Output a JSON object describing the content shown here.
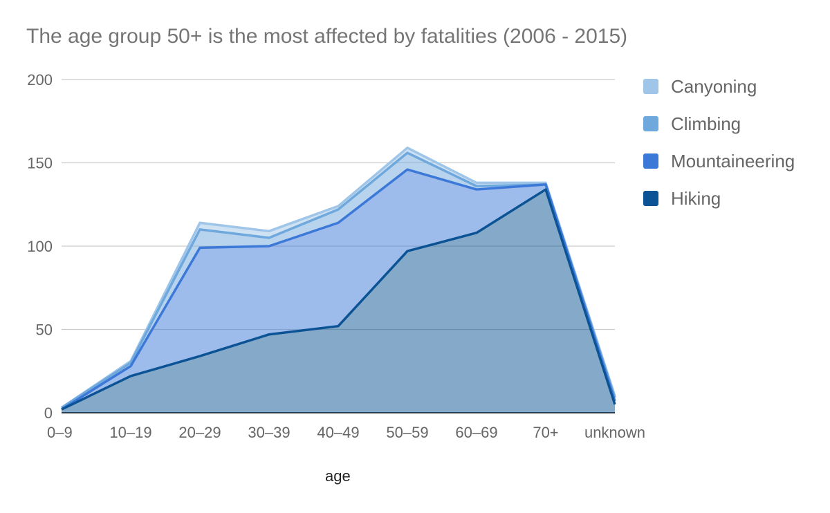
{
  "chart_data": {
    "type": "area",
    "stacked": true,
    "title": "The age group 50+ is the most affected by fatalities (2006 - 2015)",
    "xlabel": "age",
    "ylabel": "",
    "categories": [
      "0–9",
      "10–19",
      "20–29",
      "30–39",
      "40–49",
      "50–59",
      "60–69",
      "70+",
      "unknown"
    ],
    "ylim": [
      0,
      200
    ],
    "yticks": [
      "0",
      "50",
      "100",
      "150",
      "200"
    ],
    "grid": true,
    "legend_position": "right",
    "series": [
      {
        "name": "Hiking",
        "color": "#0b5394",
        "values": [
          2,
          22,
          34,
          47,
          52,
          97,
          108,
          134,
          5
        ]
      },
      {
        "name": "Mountaineering",
        "color": "#3c78d8",
        "values": [
          0,
          6,
          65,
          53,
          62,
          49,
          26,
          3,
          2
        ]
      },
      {
        "name": "Climbing",
        "color": "#6fa8dc",
        "values": [
          1,
          2,
          11,
          5,
          8,
          10,
          2,
          0,
          2
        ]
      },
      {
        "name": "Canyoning",
        "color": "#9fc5e8",
        "values": [
          0,
          1,
          4,
          4,
          2,
          3,
          2,
          1,
          1
        ]
      }
    ],
    "legend_order": [
      "Canyoning",
      "Climbing",
      "Mountaineering",
      "Hiking"
    ]
  }
}
